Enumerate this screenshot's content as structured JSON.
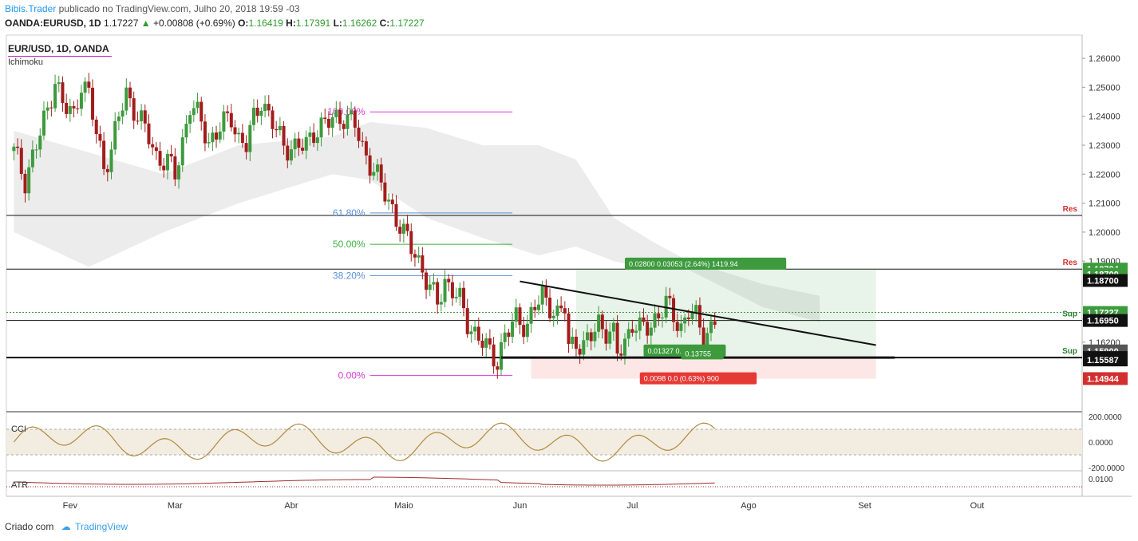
{
  "header": {
    "author": "Bibis.Trader",
    "published_text": "publicado no TradingView.com, Julho 20, 2018 19:59 -03",
    "symbol_full": "OANDA:EURUSD, 1D",
    "price": "1.17227",
    "change": "+0.00808 (+0.69%)",
    "open_label": "O:",
    "open": "1.16419",
    "high_label": "H:",
    "high": "1.17391",
    "low_label": "L:",
    "low": "1.16262",
    "close_label": "C:",
    "close": "1.17227"
  },
  "legend": {
    "title": "EUR/USD, 1D, OANDA",
    "indicator": "Ichimoku"
  },
  "footer": {
    "created": "Criado com",
    "brand": "TradingView"
  },
  "colors": {
    "up": "#3d9a3d",
    "down": "#a31c1c",
    "cloud": "#e9e9e9",
    "fib_pink": "#d63bd6",
    "fib_blue": "#5b8fd6",
    "fib_green": "#3cb043",
    "res": "#d32f2f",
    "cci": "#b08a3e",
    "atr": "#9e2b2b"
  },
  "chart_data": {
    "type": "candlestick",
    "y_axis_ticks": [
      "1.26000",
      "1.25000",
      "1.24000",
      "1.23000",
      "1.22000",
      "1.21000",
      "1.20000",
      "1.19000",
      "1.17000",
      "1.16200"
    ],
    "ylim": [
      1.138,
      1.268
    ],
    "x_axis_labels": [
      {
        "label": "Fev",
        "day": 15
      },
      {
        "label": "Mar",
        "day": 43
      },
      {
        "label": "Abr",
        "day": 74
      },
      {
        "label": "Maio",
        "day": 104
      },
      {
        "label": "Jun",
        "day": 135
      },
      {
        "label": "Jul",
        "day": 165
      },
      {
        "label": "Ago",
        "day": 196
      },
      {
        "label": "Set",
        "day": 227
      },
      {
        "label": "Out",
        "day": 257
      }
    ],
    "xlim": [
      -2,
      285
    ],
    "price_path": [
      [
        0,
        1.228
      ],
      [
        3,
        1.218
      ],
      [
        6,
        1.23
      ],
      [
        9,
        1.242
      ],
      [
        11,
        1.253
      ],
      [
        13,
        1.244
      ],
      [
        16,
        1.24
      ],
      [
        18,
        1.252
      ],
      [
        20,
        1.247
      ],
      [
        22,
        1.234
      ],
      [
        24,
        1.223
      ],
      [
        26,
        1.228
      ],
      [
        28,
        1.24
      ],
      [
        30,
        1.248
      ],
      [
        33,
        1.24
      ],
      [
        36,
        1.233
      ],
      [
        38,
        1.226
      ],
      [
        41,
        1.224
      ],
      [
        43,
        1.22
      ],
      [
        45,
        1.231
      ],
      [
        47,
        1.244
      ],
      [
        50,
        1.238
      ],
      [
        52,
        1.231
      ],
      [
        55,
        1.236
      ],
      [
        58,
        1.24
      ],
      [
        60,
        1.232
      ],
      [
        62,
        1.23
      ],
      [
        64,
        1.239
      ],
      [
        66,
        1.246
      ],
      [
        68,
        1.24
      ],
      [
        70,
        1.235
      ],
      [
        72,
        1.23
      ],
      [
        75,
        1.229
      ],
      [
        78,
        1.23
      ],
      [
        80,
        1.235
      ],
      [
        83,
        1.237
      ],
      [
        85,
        1.239
      ],
      [
        88,
        1.24
      ],
      [
        91,
        1.237
      ],
      [
        93,
        1.229
      ],
      [
        95,
        1.224
      ],
      [
        98,
        1.216
      ],
      [
        101,
        1.208
      ],
      [
        104,
        1.199
      ],
      [
        107,
        1.193
      ],
      [
        109,
        1.187
      ],
      [
        111,
        1.18
      ],
      [
        113,
        1.176
      ],
      [
        115,
        1.183
      ],
      [
        117,
        1.18
      ],
      [
        119,
        1.176
      ],
      [
        121,
        1.169
      ],
      [
        123,
        1.165
      ],
      [
        125,
        1.162
      ],
      [
        127,
        1.158
      ],
      [
        129,
        1.156
      ],
      [
        131,
        1.164
      ],
      [
        134,
        1.17
      ],
      [
        137,
        1.168
      ],
      [
        139,
        1.174
      ],
      [
        141,
        1.178
      ],
      [
        143,
        1.175
      ],
      [
        145,
        1.171
      ],
      [
        147,
        1.174
      ],
      [
        148,
        1.16
      ],
      [
        150,
        1.163
      ],
      [
        152,
        1.16
      ],
      [
        154,
        1.164
      ],
      [
        156,
        1.169
      ],
      [
        158,
        1.166
      ],
      [
        160,
        1.164
      ],
      [
        161,
        1.158
      ],
      [
        163,
        1.162
      ],
      [
        165,
        1.169
      ],
      [
        167,
        1.166
      ],
      [
        170,
        1.168
      ],
      [
        172,
        1.172
      ],
      [
        174,
        1.175
      ],
      [
        176,
        1.171
      ],
      [
        178,
        1.167
      ],
      [
        180,
        1.173
      ],
      [
        182,
        1.17
      ],
      [
        184,
        1.164
      ],
      [
        186,
        1.167
      ],
      [
        188,
        1.1723
      ]
    ],
    "cloud_upper": [
      [
        0,
        1.235
      ],
      [
        40,
        1.22
      ],
      [
        60,
        1.23
      ],
      [
        85,
        1.233
      ],
      [
        95,
        1.238
      ],
      [
        110,
        1.236
      ],
      [
        125,
        1.23
      ],
      [
        140,
        1.23
      ],
      [
        150,
        1.225
      ],
      [
        160,
        1.205
      ],
      [
        170,
        1.197
      ],
      [
        180,
        1.19
      ],
      [
        200,
        1.182
      ],
      [
        215,
        1.178
      ]
    ],
    "cloud_lower": [
      [
        0,
        1.2
      ],
      [
        20,
        1.188
      ],
      [
        40,
        1.2
      ],
      [
        60,
        1.21
      ],
      [
        85,
        1.22
      ],
      [
        95,
        1.218
      ],
      [
        110,
        1.205
      ],
      [
        125,
        1.198
      ],
      [
        140,
        1.192
      ],
      [
        150,
        1.195
      ],
      [
        160,
        1.19
      ],
      [
        170,
        1.187
      ],
      [
        180,
        1.187
      ],
      [
        200,
        1.174
      ],
      [
        215,
        1.169
      ]
    ],
    "fibonacci": [
      {
        "label": "100.00%",
        "price": 1.2415,
        "color": "#d63bd6"
      },
      {
        "label": "61.80%",
        "price": 1.2066,
        "color": "#5b8fd6"
      },
      {
        "label": "50.00%",
        "price": 1.1958,
        "color": "#3cb043"
      },
      {
        "label": "38.20%",
        "price": 1.185,
        "color": "#5b8fd6"
      },
      {
        "label": "0.00%",
        "price": 1.1505,
        "color": "#d63bd6"
      }
    ],
    "horizontal_levels": [
      {
        "price": 1.20576,
        "label": "Res",
        "tag": "1.20576"
      },
      {
        "price": 1.18724,
        "label": "Res",
        "tag": "1.18724"
      },
      {
        "price": 1.1695,
        "label": "Sup",
        "tag": "1.16950"
      },
      {
        "price": 1.15671,
        "label": "Sup",
        "tag": "1.15671"
      }
    ],
    "price_tags": [
      {
        "text": "1.18724",
        "price": 1.18724,
        "bg": "#3d9a3d"
      },
      {
        "text": "1.18700",
        "price": 1.1855,
        "bg": "#3d9a3d"
      },
      {
        "text": "1.18700",
        "price": 1.1833,
        "bg": "#111111"
      },
      {
        "text": "1.17227",
        "price": 1.17227,
        "bg": "#3d9a3d"
      },
      {
        "text": "1.16950",
        "price": 1.1695,
        "bg": "#111111"
      },
      {
        "text": "1.15900",
        "price": 1.159,
        "bg": "#555555"
      },
      {
        "text": "1.15671",
        "price": 1.15671,
        "bg": "#111111"
      },
      {
        "text": "1.15587",
        "price": 1.15587,
        "bg": "#111111"
      },
      {
        "text": "1.14944",
        "price": 1.14944,
        "bg": "#d32f2f"
      }
    ],
    "trendline": {
      "from": [
        135,
        1.183
      ],
      "to": [
        230,
        1.161
      ]
    },
    "position_box": {
      "x_from": 150,
      "x_to": 195,
      "entry": 1.1567,
      "target": 1.1872,
      "stop": 1.1494
    },
    "position_labels": [
      {
        "text": "0.02800 0.03053 (2.64%) 1419.94",
        "price": 1.189,
        "bg": "#3d9a3d"
      },
      {
        "text": "0.01327 0.10294",
        "price": 1.159,
        "bg": "#3d9a3d"
      },
      {
        "text": "0.13755",
        "price": 1.158,
        "bg": "#3d9a3d"
      },
      {
        "text": "0.0098 0.0 (0.63%) 900",
        "price": 1.1494,
        "bg": "#e53935"
      }
    ],
    "cci_panel": {
      "label": "CCI",
      "ticks": [
        "200.0000",
        "0.0000",
        "-200.0000"
      ]
    },
    "atr_panel": {
      "label": "ATR",
      "ticks": [
        "0.0100"
      ]
    }
  }
}
